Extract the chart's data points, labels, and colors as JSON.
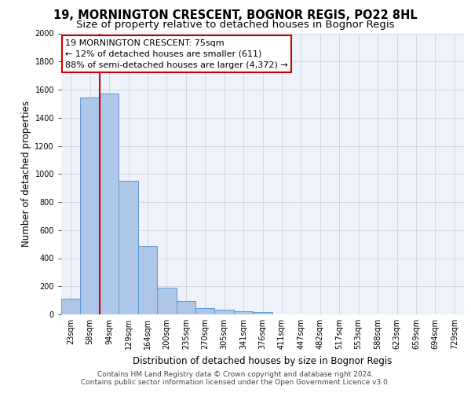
{
  "title": "19, MORNINGTON CRESCENT, BOGNOR REGIS, PO22 8HL",
  "subtitle": "Size of property relative to detached houses in Bognor Regis",
  "xlabel": "Distribution of detached houses by size in Bognor Regis",
  "ylabel": "Number of detached properties",
  "categories": [
    "23sqm",
    "58sqm",
    "94sqm",
    "129sqm",
    "164sqm",
    "200sqm",
    "235sqm",
    "270sqm",
    "305sqm",
    "341sqm",
    "376sqm",
    "411sqm",
    "447sqm",
    "482sqm",
    "517sqm",
    "553sqm",
    "588sqm",
    "623sqm",
    "659sqm",
    "694sqm",
    "729sqm"
  ],
  "values": [
    110,
    1545,
    1570,
    950,
    487,
    192,
    95,
    45,
    33,
    20,
    15,
    0,
    0,
    0,
    0,
    0,
    0,
    0,
    0,
    0,
    0
  ],
  "bar_color": "#aec6e8",
  "bar_edgecolor": "#5b9bd5",
  "annotation_text": "19 MORNINGTON CRESCENT: 75sqm\n← 12% of detached houses are smaller (611)\n88% of semi-detached houses are larger (4,372) →",
  "annotation_box_color": "#ffffff",
  "annotation_box_edgecolor": "#cc0000",
  "vline_color": "#cc0000",
  "vline_x": 1.5,
  "ylim": [
    0,
    2000
  ],
  "yticks": [
    0,
    200,
    400,
    600,
    800,
    1000,
    1200,
    1400,
    1600,
    1800,
    2000
  ],
  "footer_line1": "Contains HM Land Registry data © Crown copyright and database right 2024.",
  "footer_line2": "Contains public sector information licensed under the Open Government Licence v3.0.",
  "plot_bg_color": "#eef2fa",
  "title_fontsize": 10.5,
  "subtitle_fontsize": 9.5,
  "axis_label_fontsize": 8.5,
  "tick_fontsize": 7,
  "annotation_fontsize": 8,
  "footer_fontsize": 6.5
}
